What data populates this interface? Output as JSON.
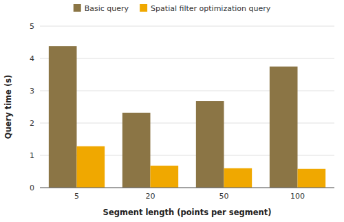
{
  "chart_data": {
    "type": "bar",
    "xlabel": "Segment length (points per segment)",
    "ylabel": "Query time (s)",
    "categories": [
      "5",
      "20",
      "50",
      "100"
    ],
    "series": [
      {
        "name": "Basic query",
        "color": "#8B7545",
        "values": [
          4.38,
          2.32,
          2.68,
          3.75
        ]
      },
      {
        "name": "Spatial filter optimization query",
        "color": "#F0A800",
        "values": [
          1.28,
          0.68,
          0.6,
          0.58
        ]
      }
    ],
    "ylim": [
      0,
      5
    ],
    "yticks": [
      0,
      1,
      2,
      3,
      4,
      5
    ],
    "grid": true,
    "legend": "top"
  }
}
